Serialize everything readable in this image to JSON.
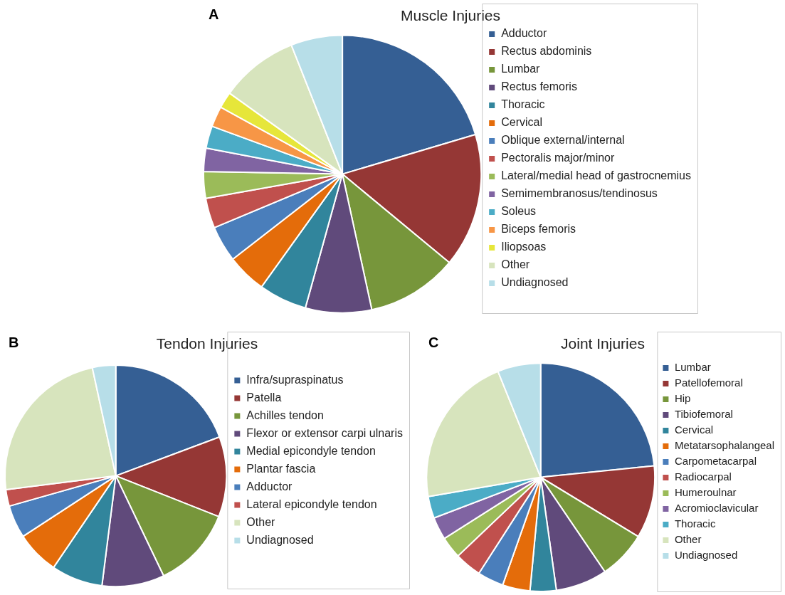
{
  "chart_data": [
    {
      "type": "pie",
      "title": "Muscle Injuries",
      "annotations": [
        "A"
      ],
      "legend": "right",
      "categories": [
        "Adductor",
        "Rectus abdominis",
        "Lumbar",
        "Rectus femoris",
        "Thoracic",
        "Cervical",
        "Oblique external/internal",
        "Pectoralis major/minor",
        "Lateral/medial head of gastrocnemius",
        "Semimembranosus/tendinosus",
        "Soleus",
        "Biceps femoris",
        "Iliopsoas",
        "Other",
        "Undiagnosed"
      ],
      "values": [
        20.4,
        15.6,
        10.6,
        7.7,
        5.6,
        4.6,
        4.2,
        3.5,
        3.1,
        2.7,
        2.6,
        2.4,
        1.9,
        9.1,
        6.0
      ],
      "colors": [
        "#355f94",
        "#953735",
        "#77963b",
        "#604a7b",
        "#31859c",
        "#e46c0a",
        "#4a7ebb",
        "#c0504d",
        "#9bbb59",
        "#8064a2",
        "#4bacc6",
        "#f79646",
        "#e6e63a",
        "#d7e4bd",
        "#b7dee8"
      ]
    },
    {
      "type": "pie",
      "title": "Tendon Injuries",
      "annotations": [
        "B"
      ],
      "legend": "right",
      "categories": [
        "Infra/supraspinatus",
        "Patella",
        "Achilles tendon",
        "Flexor or extensor carpi ulnaris",
        "Medial epicondyle tendon",
        "Plantar fascia",
        "Adductor",
        "Lateral epicondyle tendon",
        "Other",
        "Undiagnosed"
      ],
      "values": [
        19.3,
        11.7,
        11.9,
        9.1,
        7.5,
        6.3,
        4.8,
        2.4,
        23.6,
        3.4
      ],
      "colors": [
        "#355f94",
        "#953735",
        "#77963b",
        "#604a7b",
        "#31859c",
        "#e46c0a",
        "#4a7ebb",
        "#c0504d",
        "#d7e4bd",
        "#b7dee8"
      ]
    },
    {
      "type": "pie",
      "title": "Joint Injuries",
      "annotations": [
        "C"
      ],
      "legend": "right",
      "categories": [
        "Lumbar",
        "Patellofemoral",
        "Hip",
        "Tibiofemoral",
        "Cervical",
        "Metatarsophalangeal",
        "Carpometacarpal",
        "Radiocarpal",
        "Humeroulnar",
        "Acromioclavicular",
        "Thoracic",
        "Other",
        "Undiagnosed"
      ],
      "values": [
        23.4,
        10.3,
        6.8,
        7.3,
        3.7,
        3.9,
        3.7,
        3.8,
        3.1,
        3.2,
        3.1,
        21.6,
        6.1
      ],
      "colors": [
        "#355f94",
        "#953735",
        "#77963b",
        "#604a7b",
        "#31859c",
        "#e46c0a",
        "#4a7ebb",
        "#c0504d",
        "#9bbb59",
        "#8064a2",
        "#4bacc6",
        "#d7e4bd",
        "#b7dee8"
      ]
    }
  ]
}
